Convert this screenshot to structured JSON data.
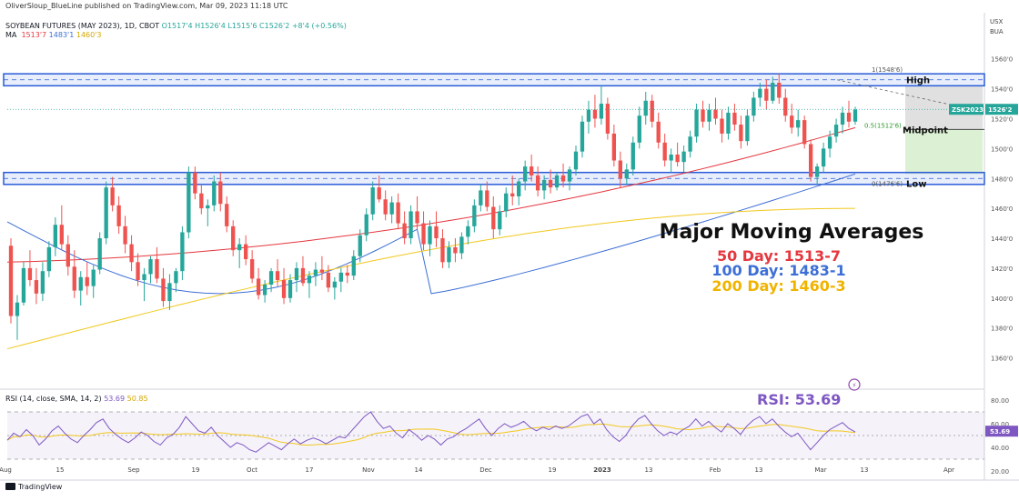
{
  "header": {
    "published": "OliverSloup_BlueLine published on TradingView.com, Mar 09, 2023 11:18 UTC",
    "symbol_line": "SOYBEAN FUTURES (MAY 2023), 1D, CBOT",
    "ohlc": {
      "o": "O1517'4",
      "h": "H1526'4",
      "l": "L1515'6",
      "c": "C1526'2",
      "chg": "+8'4 (+0.56%)"
    },
    "ma_label": "MA",
    "ma_values": [
      "1513'7",
      "1483'1",
      "1460'3"
    ]
  },
  "colors": {
    "up": "#26a69a",
    "down": "#ef5350",
    "ma50": "#e5373e",
    "ma100": "#3d6fd6",
    "ma200": "#f2c81d",
    "band": "#2a5bd7",
    "rsi": "#7e57c2",
    "green_zone": "#d8efcf",
    "grey_zone": "#d6d6d6"
  },
  "chart_data": {
    "type": "candlestick",
    "title": "SOYBEAN FUTURES (MAY 2023), 1D, CBOT",
    "currency": "USX",
    "unit": "BUA",
    "ylim": [
      1350,
      1572
    ],
    "y_ticks": [
      "1560'0",
      "1540'0",
      "1520'0",
      "1500'0",
      "1480'0",
      "1460'0",
      "1440'0",
      "1420'0",
      "1400'0",
      "1380'0",
      "1360'0"
    ],
    "x_ticks": [
      "Aug",
      "15",
      "Sep",
      "19",
      "Oct",
      "17",
      "Nov",
      "14",
      "Dec",
      "19",
      "2023",
      "13",
      "Feb",
      "13",
      "Mar",
      "13",
      "Apr"
    ],
    "price_label": "ZSK2023",
    "price_value": "1526'2",
    "price": 1526.25,
    "candles": [
      [
        1435,
        1440,
        1383,
        1388
      ],
      [
        1388,
        1402,
        1372,
        1397
      ],
      [
        1397,
        1424,
        1395,
        1420
      ],
      [
        1420,
        1432,
        1408,
        1412
      ],
      [
        1412,
        1420,
        1396,
        1403
      ],
      [
        1403,
        1424,
        1398,
        1418
      ],
      [
        1418,
        1438,
        1414,
        1434
      ],
      [
        1434,
        1454,
        1428,
        1449
      ],
      [
        1449,
        1462,
        1432,
        1436
      ],
      [
        1436,
        1442,
        1415,
        1421
      ],
      [
        1421,
        1432,
        1400,
        1405
      ],
      [
        1405,
        1418,
        1395,
        1414
      ],
      [
        1414,
        1424,
        1402,
        1408
      ],
      [
        1408,
        1422,
        1400,
        1419
      ],
      [
        1419,
        1444,
        1416,
        1440
      ],
      [
        1440,
        1478,
        1436,
        1474
      ],
      [
        1474,
        1481,
        1458,
        1462
      ],
      [
        1462,
        1468,
        1443,
        1448
      ],
      [
        1448,
        1455,
        1430,
        1436
      ],
      [
        1436,
        1442,
        1418,
        1424
      ],
      [
        1424,
        1430,
        1408,
        1412
      ],
      [
        1412,
        1420,
        1398,
        1416
      ],
      [
        1416,
        1428,
        1410,
        1426
      ],
      [
        1426,
        1434,
        1410,
        1413
      ],
      [
        1413,
        1420,
        1394,
        1398
      ],
      [
        1398,
        1416,
        1392,
        1410
      ],
      [
        1410,
        1420,
        1404,
        1418
      ],
      [
        1418,
        1448,
        1412,
        1444
      ],
      [
        1444,
        1488,
        1440,
        1484
      ],
      [
        1484,
        1488,
        1466,
        1470
      ],
      [
        1470,
        1476,
        1456,
        1460
      ],
      [
        1460,
        1466,
        1448,
        1462
      ],
      [
        1462,
        1482,
        1458,
        1478
      ],
      [
        1478,
        1484,
        1458,
        1463
      ],
      [
        1463,
        1468,
        1444,
        1448
      ],
      [
        1448,
        1452,
        1428,
        1432
      ],
      [
        1432,
        1440,
        1420,
        1436
      ],
      [
        1436,
        1442,
        1422,
        1426
      ],
      [
        1426,
        1432,
        1410,
        1413
      ],
      [
        1413,
        1420,
        1399,
        1402
      ],
      [
        1402,
        1412,
        1397,
        1409
      ],
      [
        1409,
        1420,
        1404,
        1418
      ],
      [
        1418,
        1426,
        1408,
        1412
      ],
      [
        1412,
        1420,
        1396,
        1400
      ],
      [
        1400,
        1416,
        1397,
        1412
      ],
      [
        1412,
        1424,
        1404,
        1420
      ],
      [
        1420,
        1428,
        1408,
        1410
      ],
      [
        1410,
        1418,
        1400,
        1415
      ],
      [
        1415,
        1424,
        1408,
        1419
      ],
      [
        1419,
        1428,
        1412,
        1417
      ],
      [
        1417,
        1422,
        1404,
        1407
      ],
      [
        1407,
        1414,
        1399,
        1411
      ],
      [
        1411,
        1420,
        1404,
        1417
      ],
      [
        1417,
        1422,
        1410,
        1415
      ],
      [
        1415,
        1432,
        1412,
        1428
      ],
      [
        1428,
        1446,
        1424,
        1442
      ],
      [
        1442,
        1460,
        1438,
        1456
      ],
      [
        1456,
        1478,
        1452,
        1474
      ],
      [
        1474,
        1482,
        1464,
        1466
      ],
      [
        1466,
        1472,
        1452,
        1456
      ],
      [
        1456,
        1468,
        1450,
        1464
      ],
      [
        1464,
        1470,
        1446,
        1450
      ],
      [
        1450,
        1458,
        1436,
        1440
      ],
      [
        1440,
        1462,
        1436,
        1458
      ],
      [
        1458,
        1468,
        1446,
        1450
      ],
      [
        1450,
        1458,
        1432,
        1436
      ],
      [
        1436,
        1452,
        1428,
        1448
      ],
      [
        1448,
        1458,
        1434,
        1440
      ],
      [
        1440,
        1446,
        1420,
        1424
      ],
      [
        1424,
        1438,
        1420,
        1434
      ],
      [
        1434,
        1440,
        1424,
        1430
      ],
      [
        1430,
        1444,
        1426,
        1441
      ],
      [
        1441,
        1452,
        1436,
        1448
      ],
      [
        1448,
        1466,
        1444,
        1462
      ],
      [
        1462,
        1476,
        1458,
        1472
      ],
      [
        1472,
        1478,
        1458,
        1461
      ],
      [
        1461,
        1468,
        1440,
        1446
      ],
      [
        1446,
        1462,
        1442,
        1458
      ],
      [
        1458,
        1474,
        1454,
        1470
      ],
      [
        1470,
        1482,
        1462,
        1468
      ],
      [
        1468,
        1480,
        1462,
        1478
      ],
      [
        1478,
        1492,
        1472,
        1488
      ],
      [
        1488,
        1496,
        1478,
        1482
      ],
      [
        1482,
        1488,
        1468,
        1472
      ],
      [
        1472,
        1482,
        1466,
        1479
      ],
      [
        1479,
        1486,
        1470,
        1474
      ],
      [
        1474,
        1484,
        1472,
        1482
      ],
      [
        1482,
        1490,
        1474,
        1478
      ],
      [
        1478,
        1488,
        1472,
        1486
      ],
      [
        1486,
        1502,
        1482,
        1498
      ],
      [
        1498,
        1522,
        1494,
        1518
      ],
      [
        1518,
        1532,
        1510,
        1526
      ],
      [
        1526,
        1536,
        1514,
        1520
      ],
      [
        1520,
        1542,
        1516,
        1530
      ],
      [
        1530,
        1534,
        1506,
        1510
      ],
      [
        1510,
        1516,
        1488,
        1492
      ],
      [
        1492,
        1498,
        1474,
        1480
      ],
      [
        1480,
        1490,
        1476,
        1486
      ],
      [
        1486,
        1508,
        1482,
        1504
      ],
      [
        1504,
        1528,
        1500,
        1522
      ],
      [
        1522,
        1538,
        1516,
        1532
      ],
      [
        1532,
        1536,
        1514,
        1518
      ],
      [
        1518,
        1524,
        1500,
        1504
      ],
      [
        1504,
        1510,
        1488,
        1492
      ],
      [
        1492,
        1500,
        1484,
        1496
      ],
      [
        1496,
        1504,
        1488,
        1491
      ],
      [
        1491,
        1502,
        1484,
        1498
      ],
      [
        1498,
        1512,
        1494,
        1508
      ],
      [
        1508,
        1530,
        1504,
        1526
      ],
      [
        1526,
        1532,
        1514,
        1518
      ],
      [
        1518,
        1530,
        1512,
        1526
      ],
      [
        1526,
        1534,
        1516,
        1520
      ],
      [
        1520,
        1526,
        1504,
        1510
      ],
      [
        1510,
        1528,
        1506,
        1524
      ],
      [
        1524,
        1530,
        1512,
        1516
      ],
      [
        1516,
        1522,
        1500,
        1505
      ],
      [
        1505,
        1526,
        1502,
        1522
      ],
      [
        1522,
        1538,
        1518,
        1534
      ],
      [
        1534,
        1544,
        1528,
        1540
      ],
      [
        1540,
        1546,
        1526,
        1532
      ],
      [
        1532,
        1548,
        1530,
        1544
      ],
      [
        1544,
        1550,
        1530,
        1534
      ],
      [
        1534,
        1540,
        1518,
        1522
      ],
      [
        1522,
        1530,
        1510,
        1514
      ],
      [
        1514,
        1526,
        1508,
        1519
      ],
      [
        1519,
        1522,
        1500,
        1503
      ],
      [
        1503,
        1506,
        1478,
        1481
      ],
      [
        1481,
        1490,
        1476,
        1488
      ],
      [
        1488,
        1504,
        1484,
        1500
      ],
      [
        1500,
        1512,
        1494,
        1508
      ],
      [
        1508,
        1520,
        1504,
        1516
      ],
      [
        1516,
        1528,
        1510,
        1524
      ],
      [
        1524,
        1532,
        1514,
        1518
      ],
      [
        1518,
        1528,
        1516,
        1526
      ]
    ],
    "series": [
      {
        "name": "50 Day",
        "label": "50 Day: 1513-7",
        "start": 1424,
        "end": 1514,
        "shape": "quadratic"
      },
      {
        "name": "100 Day",
        "label": "100 Day: 1483-1",
        "start": 1451,
        "end": 1483,
        "shape": "dip"
      },
      {
        "name": "200 Day",
        "label": "200 Day: 1460-3",
        "start": 1366,
        "end": 1460,
        "shape": "concave"
      }
    ],
    "levels": [
      {
        "name": "High",
        "fib": "1(1548'6)",
        "value": 1548.75,
        "band": [
          1542,
          1550
        ]
      },
      {
        "name": "Midpoint",
        "fib": "0.5(1512'6)",
        "value": 1512.75
      },
      {
        "name": "Low",
        "fib": "0(1476'6)",
        "value": 1476.75,
        "band": [
          1476,
          1484
        ]
      }
    ],
    "annotations": {
      "title": "Major Moving Averages",
      "ma50": "50 Day: 1513-7",
      "ma100": "100 Day: 1483-1",
      "ma200": "200 Day: 1460-3",
      "rsi_big": "RSI: 53.69"
    },
    "rsi": {
      "label": "RSI (14, close, SMA, 14, 2)",
      "value": "53.69",
      "sma": "50.85",
      "ticks": [
        "80.00",
        "60.00",
        "40.00",
        "20.00"
      ],
      "values": [
        46,
        52,
        49,
        55,
        50,
        42,
        47,
        54,
        58,
        52,
        47,
        44,
        50,
        55,
        61,
        64,
        56,
        51,
        47,
        44,
        48,
        53,
        50,
        45,
        42,
        48,
        51,
        57,
        66,
        60,
        54,
        52,
        57,
        50,
        45,
        40,
        44,
        42,
        38,
        36,
        40,
        44,
        41,
        38,
        43,
        47,
        43,
        46,
        48,
        46,
        43,
        46,
        49,
        48,
        54,
        60,
        66,
        70,
        62,
        56,
        58,
        52,
        48,
        55,
        51,
        46,
        50,
        47,
        42,
        47,
        49,
        53,
        56,
        60,
        64,
        56,
        50,
        56,
        60,
        57,
        59,
        62,
        57,
        54,
        57,
        55,
        58,
        56,
        58,
        62,
        66,
        68,
        60,
        64,
        55,
        49,
        45,
        50,
        58,
        64,
        67,
        60,
        54,
        50,
        53,
        51,
        55,
        58,
        64,
        58,
        62,
        57,
        53,
        60,
        56,
        51,
        58,
        63,
        66,
        60,
        64,
        58,
        53,
        49,
        52,
        45,
        38,
        44,
        50,
        55,
        58,
        61,
        56,
        53
      ]
    }
  },
  "footer": {
    "logo": "TradingView"
  }
}
